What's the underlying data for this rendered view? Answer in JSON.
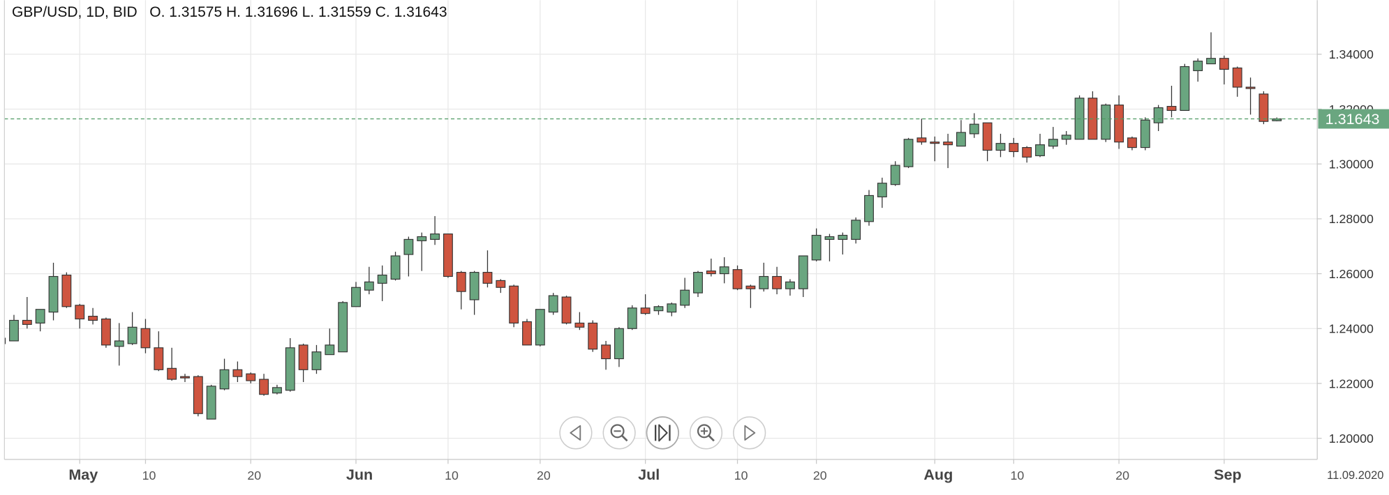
{
  "chart_data": {
    "type": "candlestick",
    "symbol": "GBP/USD, 1D, BID",
    "ohlc_labels": [
      "O.",
      "H.",
      "L.",
      "C."
    ],
    "x_end_label": "11.09.2020",
    "up_color": "#6aa680",
    "down_color": "#cf5540",
    "grid": true,
    "categories": [
      "2020-04-23",
      "2020-04-24",
      "2020-04-27",
      "2020-04-28",
      "2020-04-29",
      "2020-04-30",
      "2020-05-01",
      "2020-05-04",
      "2020-05-05",
      "2020-05-06",
      "2020-05-07",
      "2020-05-08",
      "2020-05-11",
      "2020-05-12",
      "2020-05-13",
      "2020-05-14",
      "2020-05-15",
      "2020-05-18",
      "2020-05-19",
      "2020-05-20",
      "2020-05-21",
      "2020-05-22",
      "2020-05-25",
      "2020-05-26",
      "2020-05-27",
      "2020-05-28",
      "2020-05-29",
      "2020-06-01",
      "2020-06-02",
      "2020-06-03",
      "2020-06-04",
      "2020-06-05",
      "2020-06-08",
      "2020-06-09",
      "2020-06-10",
      "2020-06-11",
      "2020-06-12",
      "2020-06-15",
      "2020-06-16",
      "2020-06-17",
      "2020-06-18",
      "2020-06-19",
      "2020-06-22",
      "2020-06-23",
      "2020-06-24",
      "2020-06-25",
      "2020-06-26",
      "2020-06-29",
      "2020-06-30",
      "2020-07-01",
      "2020-07-02",
      "2020-07-03",
      "2020-07-06",
      "2020-07-07",
      "2020-07-08",
      "2020-07-09",
      "2020-07-10",
      "2020-07-13",
      "2020-07-14",
      "2020-07-15",
      "2020-07-16",
      "2020-07-17",
      "2020-07-20",
      "2020-07-21",
      "2020-07-22",
      "2020-07-23",
      "2020-07-24",
      "2020-07-27",
      "2020-07-28",
      "2020-07-29",
      "2020-07-30",
      "2020-07-31",
      "2020-08-03",
      "2020-08-04",
      "2020-08-05",
      "2020-08-06",
      "2020-08-07",
      "2020-08-10",
      "2020-08-11",
      "2020-08-12",
      "2020-08-13",
      "2020-08-14",
      "2020-08-17",
      "2020-08-18",
      "2020-08-19",
      "2020-08-20",
      "2020-08-21",
      "2020-08-24",
      "2020-08-25",
      "2020-08-26",
      "2020-08-27",
      "2020-08-28",
      "2020-08-31",
      "2020-09-01",
      "2020-09-02",
      "2020-09-03",
      "2020-09-04",
      "2020-09-07"
    ],
    "open": [
      1.2345,
      1.2355,
      1.243,
      1.242,
      1.246,
      1.2595,
      1.2485,
      1.2445,
      1.2435,
      1.2335,
      1.2345,
      1.24,
      1.233,
      1.2255,
      1.2225,
      1.2225,
      1.207,
      1.218,
      1.225,
      1.2235,
      1.2215,
      1.2165,
      1.2175,
      1.234,
      1.225,
      1.2305,
      1.2315,
      1.248,
      1.254,
      1.2565,
      1.258,
      1.267,
      1.272,
      1.2725,
      1.2745,
      1.2605,
      1.2505,
      1.2605,
      1.2575,
      1.2555,
      1.2425,
      1.234,
      1.246,
      1.2515,
      1.242,
      1.242,
      1.234,
      1.229,
      1.24,
      1.2475,
      1.2465,
      1.246,
      1.2485,
      1.253,
      1.261,
      1.26,
      1.2615,
      1.2555,
      1.2545,
      1.259,
      1.2545,
      1.2545,
      1.265,
      1.2725,
      1.2725,
      1.2725,
      1.279,
      1.288,
      1.2925,
      1.299,
      1.3095,
      1.308,
      1.308,
      1.3065,
      1.311,
      1.315,
      1.305,
      1.3075,
      1.306,
      1.303,
      1.3065,
      1.309,
      1.309,
      1.324,
      1.309,
      1.3215,
      1.3095,
      1.306,
      1.315,
      1.321,
      1.3195,
      1.334,
      1.3365,
      1.3385,
      1.335,
      1.328,
      1.3255,
      1.31575
    ],
    "high": [
      1.2375,
      1.245,
      1.2515,
      1.247,
      1.264,
      1.2605,
      1.249,
      1.2475,
      1.244,
      1.242,
      1.246,
      1.2435,
      1.239,
      1.233,
      1.2235,
      1.223,
      1.2195,
      1.229,
      1.228,
      1.224,
      1.2235,
      1.2195,
      1.2365,
      1.2345,
      1.234,
      1.24,
      1.25,
      1.257,
      1.2625,
      1.263,
      1.268,
      1.2735,
      1.275,
      1.281,
      1.2745,
      1.261,
      1.261,
      1.2685,
      1.258,
      1.256,
      1.2435,
      1.247,
      1.253,
      1.252,
      1.246,
      1.243,
      1.2355,
      1.2405,
      1.2485,
      1.2525,
      1.2485,
      1.2495,
      1.2585,
      1.261,
      1.2655,
      1.266,
      1.263,
      1.256,
      1.264,
      1.2625,
      1.258,
      1.2665,
      1.2765,
      1.2745,
      1.275,
      1.2805,
      1.2905,
      1.295,
      1.301,
      1.3095,
      1.3165,
      1.31,
      1.311,
      1.316,
      1.3185,
      1.315,
      1.311,
      1.3095,
      1.3065,
      1.311,
      1.3135,
      1.312,
      1.325,
      1.3265,
      1.322,
      1.325,
      1.31,
      1.317,
      1.3215,
      1.3285,
      1.3365,
      1.3385,
      1.348,
      1.3395,
      1.3355,
      1.3315,
      1.3265,
      1.31696
    ],
    "low": [
      1.2335,
      1.2355,
      1.24,
      1.239,
      1.243,
      1.2475,
      1.24,
      1.2415,
      1.233,
      1.2265,
      1.234,
      1.231,
      1.2245,
      1.221,
      1.2205,
      1.208,
      1.207,
      1.2175,
      1.2205,
      1.22,
      1.2155,
      1.216,
      1.217,
      1.2205,
      1.2235,
      1.2305,
      1.2315,
      1.248,
      1.2525,
      1.25,
      1.2575,
      1.259,
      1.261,
      1.2705,
      1.2585,
      1.247,
      1.245,
      1.255,
      1.253,
      1.2405,
      1.234,
      1.2335,
      1.245,
      1.2415,
      1.2395,
      1.2315,
      1.225,
      1.226,
      1.2395,
      1.245,
      1.245,
      1.2445,
      1.2475,
      1.2515,
      1.259,
      1.2565,
      1.254,
      1.2475,
      1.2535,
      1.2525,
      1.252,
      1.2515,
      1.2645,
      1.2645,
      1.267,
      1.271,
      1.2775,
      1.284,
      1.292,
      1.2985,
      1.307,
      1.301,
      1.2985,
      1.3065,
      1.3095,
      1.301,
      1.3025,
      1.3025,
      1.3005,
      1.3025,
      1.3055,
      1.307,
      1.309,
      1.309,
      1.308,
      1.3055,
      1.305,
      1.305,
      1.312,
      1.317,
      1.3195,
      1.33,
      1.3365,
      1.329,
      1.3245,
      1.318,
      1.3145,
      1.31559
    ],
    "close": [
      1.2365,
      1.243,
      1.2415,
      1.247,
      1.259,
      1.248,
      1.2435,
      1.243,
      1.234,
      1.2355,
      1.2405,
      1.233,
      1.225,
      1.2215,
      1.222,
      1.209,
      1.219,
      1.225,
      1.2225,
      1.221,
      1.216,
      1.2185,
      1.233,
      1.225,
      1.2315,
      1.234,
      1.2495,
      1.255,
      1.257,
      1.2595,
      1.2665,
      1.2725,
      1.2735,
      1.2745,
      1.259,
      1.2535,
      1.2605,
      1.2565,
      1.255,
      1.242,
      1.234,
      1.247,
      1.252,
      1.242,
      1.2405,
      1.2325,
      1.229,
      1.24,
      1.2475,
      1.2455,
      1.248,
      1.249,
      1.254,
      1.2605,
      1.26,
      1.2625,
      1.2545,
      1.2545,
      1.259,
      1.2545,
      1.257,
      1.2665,
      1.274,
      1.2735,
      1.274,
      1.2795,
      1.2885,
      1.293,
      1.2995,
      1.309,
      1.308,
      1.3075,
      1.307,
      1.3115,
      1.3145,
      1.305,
      1.3075,
      1.3045,
      1.3025,
      1.307,
      1.309,
      1.3105,
      1.324,
      1.309,
      1.3215,
      1.308,
      1.306,
      1.316,
      1.3205,
      1.3195,
      1.3355,
      1.3375,
      1.3385,
      1.3345,
      1.328,
      1.3275,
      1.3155,
      1.31643
    ],
    "ylim": [
      1.1923,
      1.3597
    ],
    "yticks": [
      {
        "value": 1.2,
        "label": "1.20000"
      },
      {
        "value": 1.22,
        "label": "1.22000"
      },
      {
        "value": 1.24,
        "label": "1.24000"
      },
      {
        "value": 1.26,
        "label": "1.26000"
      },
      {
        "value": 1.28,
        "label": "1.28000"
      },
      {
        "value": 1.3,
        "label": "1.30000"
      },
      {
        "value": 1.32,
        "label": "1.32000"
      },
      {
        "value": 1.34,
        "label": "1.34000"
      }
    ],
    "xticks": [
      {
        "value": "2020-05-01",
        "label": "May"
      },
      {
        "value": "2020-05-10",
        "label": "10"
      },
      {
        "value": "2020-05-20",
        "label": "20"
      },
      {
        "value": "2020-06-01",
        "label": "Jun"
      },
      {
        "value": "2020-06-10",
        "label": "10"
      },
      {
        "value": "2020-06-20",
        "label": "20"
      },
      {
        "value": "2020-07-01",
        "label": "Jul"
      },
      {
        "value": "2020-07-10",
        "label": "10"
      },
      {
        "value": "2020-07-20",
        "label": "20"
      },
      {
        "value": "2020-08-01",
        "label": "Aug"
      },
      {
        "value": "2020-08-10",
        "label": "10"
      },
      {
        "value": "2020-08-20",
        "label": "20"
      },
      {
        "value": "2020-09-01",
        "label": "Sep"
      }
    ]
  }
}
